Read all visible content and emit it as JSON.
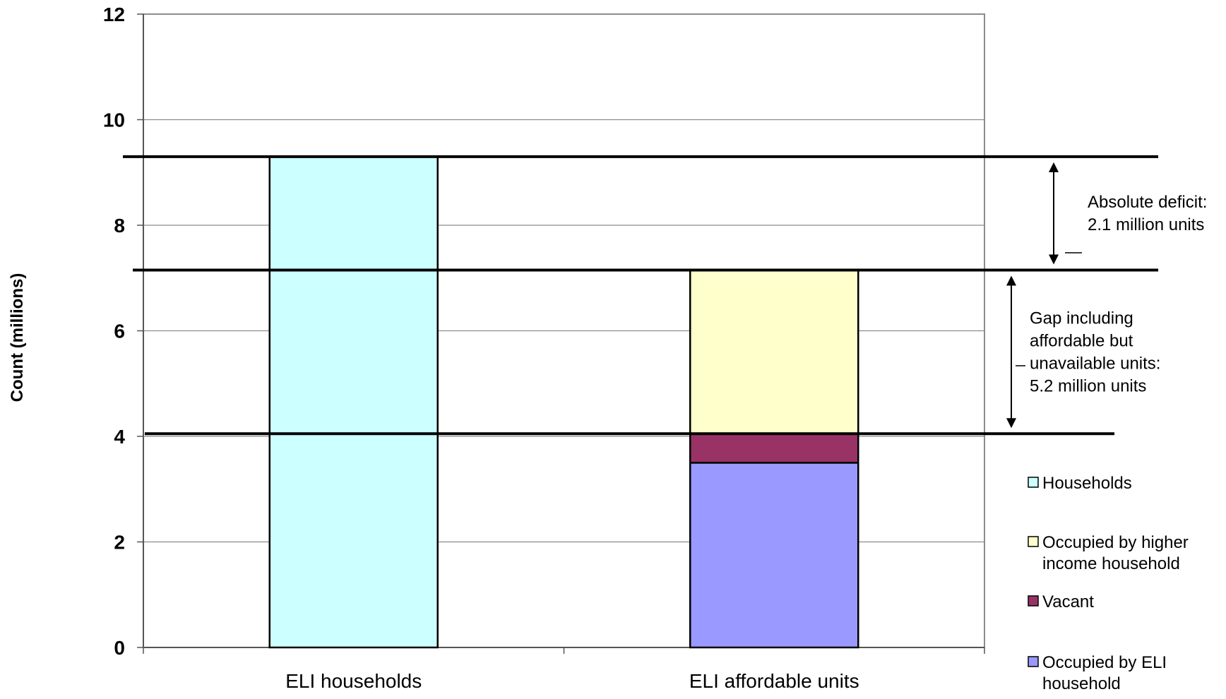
{
  "chart_data": {
    "type": "bar",
    "stacked": true,
    "ylabel": "Count (millions)",
    "ylim": [
      0,
      12
    ],
    "yticks": [
      "0",
      "2",
      "4",
      "6",
      "8",
      "10",
      "12"
    ],
    "categories": [
      "ELI households",
      "ELI affordable units"
    ],
    "grid": true,
    "legend_position": "right",
    "series": [
      {
        "name": "Households",
        "color": "#ccffff",
        "values": [
          9.3,
          0
        ]
      },
      {
        "name": "Occupied by ELI household",
        "color": "#9999ff",
        "values": [
          0,
          3.5
        ]
      },
      {
        "name": "Vacant",
        "color": "#993366",
        "values": [
          0,
          0.55
        ]
      },
      {
        "name": "Occupied by higher income household",
        "color": "#ffffcc",
        "values": [
          0,
          3.1
        ]
      }
    ],
    "legend": [
      {
        "label": [
          "Households"
        ],
        "color": "#ccffff"
      },
      {
        "label": [
          "Occupied by higher",
          "income household"
        ],
        "color": "#ffffcc"
      },
      {
        "label": [
          "Vacant"
        ],
        "color": "#993366"
      },
      {
        "label": [
          "Occupied by ELI",
          "household"
        ],
        "color": "#9999ff"
      }
    ],
    "reference_lines": [
      9.3,
      7.15,
      4.05
    ],
    "annotations": [
      {
        "lines": [
          "Absolute deficit:",
          "2.1 million units"
        ],
        "from": 9.3,
        "to": 7.15
      },
      {
        "lines": [
          "Gap including",
          "affordable but",
          "unavailable units:",
          "5.2 million units"
        ],
        "from": 7.15,
        "to": 4.05
      }
    ]
  }
}
